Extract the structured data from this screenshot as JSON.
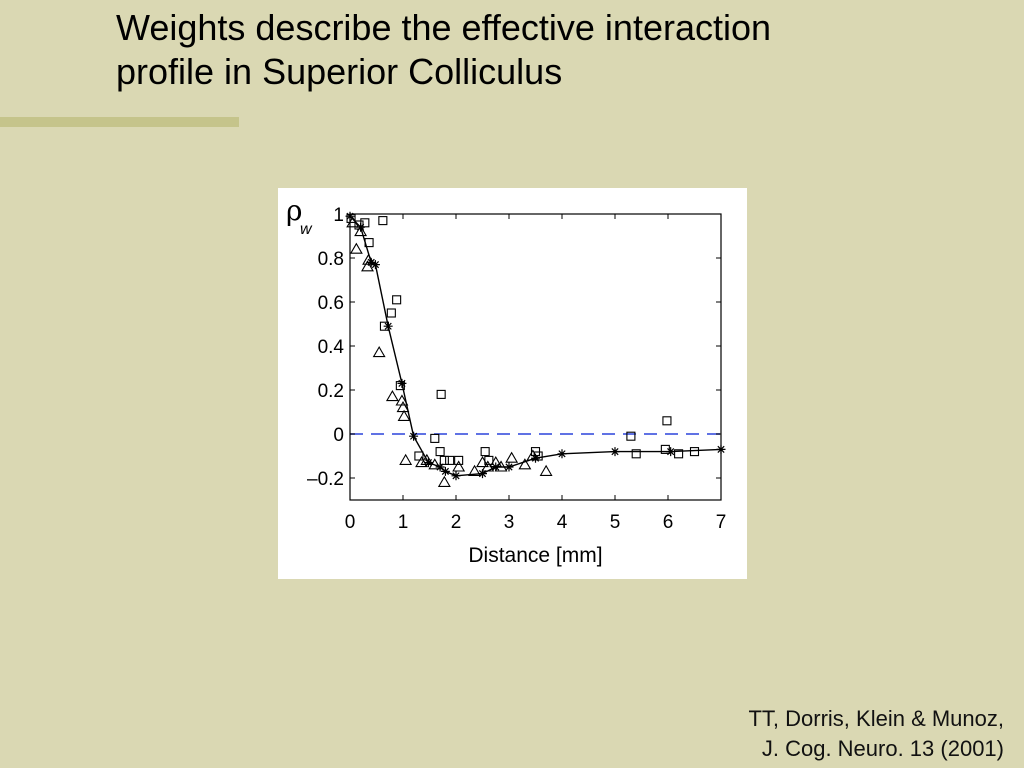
{
  "slide": {
    "title_line1": "Weights describe the effective interaction",
    "title_line2": "profile in Superior Colliculus",
    "citation_line1": "TT, Dorris, Klein & Munoz,",
    "citation_line2": "J. Cog. Neuro. 13 (2001)"
  },
  "chart_data": {
    "type": "scatter",
    "title": "",
    "xlabel": "Distance [mm]",
    "ylabel_symbol": "ρ",
    "ylabel_subscript": "w",
    "xlim": [
      0,
      7
    ],
    "ylim": [
      -0.3,
      1.0
    ],
    "xticks": [
      0,
      1,
      2,
      3,
      4,
      5,
      6,
      7
    ],
    "xtick_labels": [
      "0",
      "1",
      "2",
      "3",
      "4",
      "5",
      "6",
      "7"
    ],
    "yticks": [
      1,
      0.8,
      0.6,
      0.4,
      0.2,
      0,
      -0.2
    ],
    "ytick_labels": [
      "1",
      "0.8",
      "0.6",
      "0.4",
      "0.2",
      "0",
      "–0.2"
    ],
    "grid": false,
    "reference_line": {
      "y": 0,
      "style": "dashed",
      "color": "#4a5fe0"
    },
    "series": [
      {
        "marker": "square",
        "points": [
          [
            0.02,
            0.98
          ],
          [
            0.17,
            0.95
          ],
          [
            0.28,
            0.96
          ],
          [
            0.36,
            0.87
          ],
          [
            0.62,
            0.97
          ],
          [
            0.65,
            0.49
          ],
          [
            0.78,
            0.55
          ],
          [
            0.88,
            0.61
          ],
          [
            0.95,
            0.22
          ],
          [
            1.72,
            0.18
          ],
          [
            1.3,
            -0.1
          ],
          [
            1.6,
            -0.02
          ],
          [
            1.7,
            -0.08
          ],
          [
            1.78,
            -0.12
          ],
          [
            1.88,
            -0.12
          ],
          [
            2.05,
            -0.12
          ],
          [
            2.55,
            -0.08
          ],
          [
            2.62,
            -0.12
          ],
          [
            3.5,
            -0.08
          ],
          [
            3.55,
            -0.1
          ],
          [
            5.3,
            -0.01
          ],
          [
            5.4,
            -0.09
          ],
          [
            5.95,
            -0.07
          ],
          [
            5.98,
            0.06
          ],
          [
            6.2,
            -0.09
          ],
          [
            6.5,
            -0.08
          ]
        ]
      },
      {
        "marker": "triangle",
        "points": [
          [
            0.05,
            0.96
          ],
          [
            0.12,
            0.84
          ],
          [
            0.2,
            0.92
          ],
          [
            0.33,
            0.76
          ],
          [
            0.35,
            0.79
          ],
          [
            0.55,
            0.37
          ],
          [
            0.8,
            0.17
          ],
          [
            0.98,
            0.15
          ],
          [
            1.0,
            0.12
          ],
          [
            1.02,
            0.08
          ],
          [
            1.05,
            -0.12
          ],
          [
            1.35,
            -0.13
          ],
          [
            1.45,
            -0.12
          ],
          [
            1.6,
            -0.14
          ],
          [
            1.78,
            -0.22
          ],
          [
            2.05,
            -0.15
          ],
          [
            2.35,
            -0.17
          ],
          [
            2.5,
            -0.13
          ],
          [
            2.6,
            -0.15
          ],
          [
            2.75,
            -0.13
          ],
          [
            2.85,
            -0.15
          ],
          [
            3.05,
            -0.11
          ],
          [
            3.3,
            -0.14
          ],
          [
            3.45,
            -0.1
          ],
          [
            3.7,
            -0.17
          ]
        ]
      },
      {
        "marker": "star",
        "connected": true,
        "points": [
          [
            0.0,
            0.99
          ],
          [
            0.2,
            0.94
          ],
          [
            0.4,
            0.78
          ],
          [
            0.48,
            0.77
          ],
          [
            0.72,
            0.49
          ],
          [
            0.98,
            0.23
          ],
          [
            1.2,
            -0.01
          ],
          [
            1.48,
            -0.13
          ],
          [
            1.7,
            -0.15
          ],
          [
            1.8,
            -0.17
          ],
          [
            2.0,
            -0.19
          ],
          [
            2.5,
            -0.18
          ],
          [
            2.75,
            -0.15
          ],
          [
            3.0,
            -0.15
          ],
          [
            3.5,
            -0.11
          ],
          [
            4.0,
            -0.09
          ],
          [
            5.0,
            -0.08
          ],
          [
            6.05,
            -0.08
          ],
          [
            7.0,
            -0.07
          ]
        ]
      }
    ]
  }
}
